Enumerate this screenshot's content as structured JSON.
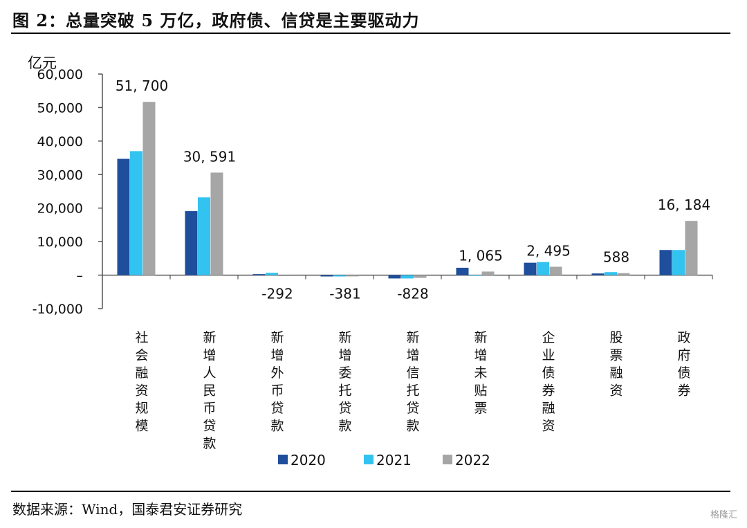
{
  "title": "图 2：总量突破 5 万亿，政府债、信贷是主要驱动力",
  "source": "数据来源：Wind，国泰君安证券研究",
  "watermark": "格隆汇",
  "chart_data": {
    "type": "bar",
    "ylabel": "亿元",
    "ylim": [
      -10000,
      60000
    ],
    "yticks": [
      60000,
      50000,
      40000,
      30000,
      20000,
      10000,
      0,
      -10000
    ],
    "ytick_labels": [
      "60,000",
      "50,000",
      "40,000",
      "30,000",
      "20,000",
      "10,000",
      "–",
      "-10,000"
    ],
    "categories": [
      "社会融资规模",
      "新增人民币贷款",
      "新增外币贷款",
      "新增委托贷款",
      "新增信托贷款",
      "新增未贴票",
      "企业债券融资",
      "股票融资",
      "政府债券"
    ],
    "series": [
      {
        "name": "2020",
        "color": "#1f4e9c",
        "values": [
          34700,
          19100,
          300,
          -400,
          -1000,
          2200,
          3700,
          500,
          7500
        ]
      },
      {
        "name": "2021",
        "color": "#33c3f0",
        "values": [
          37000,
          23200,
          700,
          -400,
          -1000,
          -100,
          3900,
          900,
          7500
        ]
      },
      {
        "name": "2022",
        "color": "#a6a6a6",
        "values": [
          51700,
          30591,
          -292,
          -381,
          -828,
          1065,
          2495,
          588,
          16184
        ]
      }
    ],
    "data_labels": [
      "51, 700",
      "30, 591",
      "-292",
      "-381",
      "-828",
      "1, 065",
      "2, 495",
      "588",
      "16, 184"
    ],
    "legend_position": "bottom",
    "grid": false
  }
}
